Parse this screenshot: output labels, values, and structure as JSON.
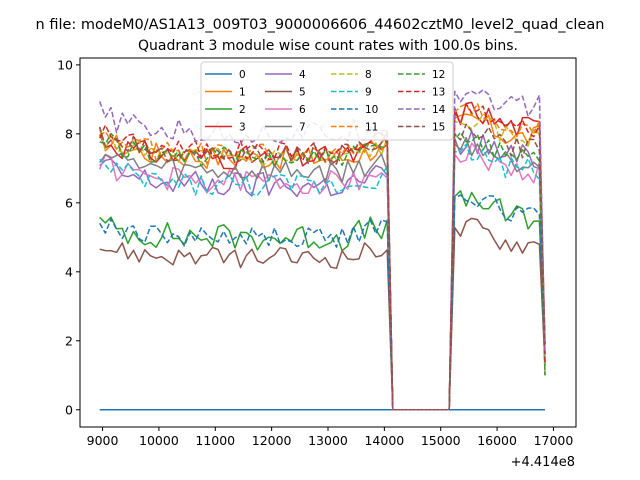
{
  "chart_data": {
    "type": "line",
    "suptitle": "n file: modeM0/AS1A13_009T03_9000006606_44602cztM0_level2_quad_clean",
    "title": "Quadrant 3 module wise count rates with 100.0s bins.",
    "xlabel": "",
    "ylabel": "",
    "x_offset_label": "+4.414e8",
    "xlim": [
      8600,
      17400
    ],
    "ylim": [
      -0.5,
      10.2
    ],
    "xticks": [
      9000,
      10000,
      11000,
      12000,
      13000,
      14000,
      15000,
      16000,
      17000
    ],
    "xtick_labels": [
      "9000",
      "10000",
      "11000",
      "12000",
      "13000",
      "14000",
      "15000",
      "16000",
      "17000"
    ],
    "yticks": [
      0,
      2,
      4,
      6,
      8,
      10
    ],
    "ytick_labels": [
      "0",
      "2",
      "4",
      "6",
      "8",
      "10"
    ],
    "grid": false,
    "legend_position": "top-center",
    "legend_columns": 4,
    "segments": [
      {
        "x_start": 8950,
        "x_end": 14050,
        "points": 52
      },
      {
        "x_start": 15250,
        "x_end": 16850,
        "points": 17
      }
    ],
    "gap": {
      "x": [
        14150,
        15150
      ],
      "value": 0
    },
    "series": [
      {
        "name": "0",
        "color": "#1f77b4",
        "dash": false,
        "level": 0.0,
        "level2": 0.0,
        "amp": 0.0,
        "seed": 1
      },
      {
        "name": "1",
        "color": "#ff7f0e",
        "dash": false,
        "level": 7.3,
        "level2": 7.9,
        "amp": 0.35,
        "seed": 2
      },
      {
        "name": "2",
        "color": "#2ca02c",
        "dash": false,
        "level": 5.0,
        "level2": 5.6,
        "amp": 0.4,
        "seed": 3
      },
      {
        "name": "3",
        "color": "#d62728",
        "dash": false,
        "level": 7.3,
        "level2": 8.2,
        "amp": 0.35,
        "seed": 4
      },
      {
        "name": "4",
        "color": "#9467bd",
        "dash": false,
        "level": 6.5,
        "level2": 7.3,
        "amp": 0.4,
        "seed": 5
      },
      {
        "name": "5",
        "color": "#8c564b",
        "dash": false,
        "level": 4.4,
        "level2": 4.8,
        "amp": 0.3,
        "seed": 6
      },
      {
        "name": "6",
        "color": "#e377c2",
        "dash": false,
        "level": 6.6,
        "level2": 6.9,
        "amp": 0.35,
        "seed": 7
      },
      {
        "name": "7",
        "color": "#7f7f7f",
        "dash": false,
        "level": 6.9,
        "level2": 7.2,
        "amp": 0.35,
        "seed": 8
      },
      {
        "name": "8",
        "color": "#bcbd22",
        "dash": true,
        "level": 7.3,
        "level2": 7.9,
        "amp": 0.3,
        "seed": 9
      },
      {
        "name": "9",
        "color": "#17becf",
        "dash": true,
        "level": 6.5,
        "level2": 7.0,
        "amp": 0.35,
        "seed": 10
      },
      {
        "name": "10",
        "color": "#1f77b4",
        "dash": true,
        "level": 5.0,
        "level2": 5.7,
        "amp": 0.3,
        "seed": 11
      },
      {
        "name": "11",
        "color": "#ff7f0e",
        "dash": true,
        "level": 7.4,
        "level2": 8.2,
        "amp": 0.3,
        "seed": 12
      },
      {
        "name": "12",
        "color": "#2ca02c",
        "dash": true,
        "level": 7.3,
        "level2": 7.4,
        "amp": 0.3,
        "seed": 13
      },
      {
        "name": "13",
        "color": "#d62728",
        "dash": true,
        "level": 7.5,
        "level2": 8.2,
        "amp": 0.3,
        "seed": 14
      },
      {
        "name": "14",
        "color": "#9467bd",
        "dash": true,
        "level": 8.0,
        "level2": 8.8,
        "amp": 0.35,
        "seed": 15
      },
      {
        "name": "15",
        "color": "#8c564b",
        "dash": true,
        "level": 7.4,
        "level2": 7.6,
        "amp": 0.3,
        "seed": 16
      }
    ]
  }
}
